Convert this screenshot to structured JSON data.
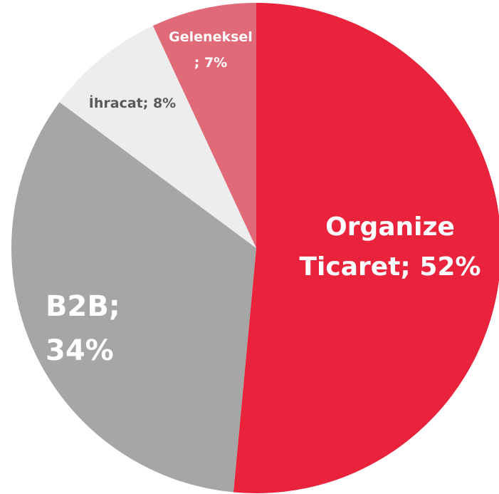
{
  "chart_data": {
    "type": "pie",
    "categories": [
      "Organize Ticaret",
      "B2B",
      "İhracat",
      "Geleneksel"
    ],
    "values": [
      52,
      34,
      8,
      7
    ],
    "value_labels": [
      "Organize Ticaret; 52%",
      "B2B; 34%",
      "İhracat; 8%",
      "Geleneksel ; 7%"
    ],
    "colors": [
      "#e8233b",
      "#a6a6a6",
      "#ededed",
      "#e16a78"
    ]
  }
}
